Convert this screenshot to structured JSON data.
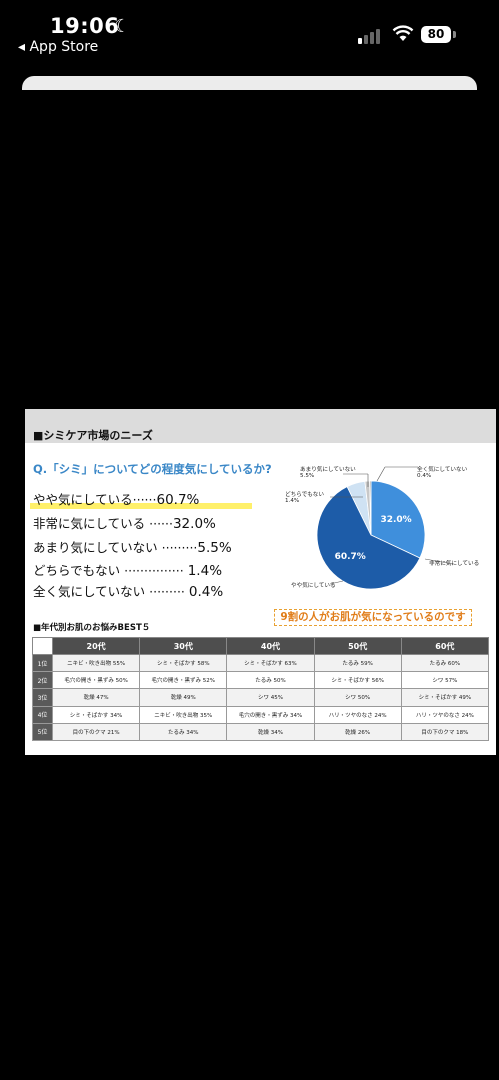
{
  "status_bar": {
    "time": "19:06",
    "back_label": "◂ App Store",
    "battery": "80"
  },
  "slide": {
    "section_title": "■シミケア市場のニーズ",
    "question": "Q.「シミ」についてどの程度気にしているか?",
    "answers": [
      {
        "label": "やや気にしている",
        "dots": "······",
        "pct": "60.7%"
      },
      {
        "label": "非常に気にしている",
        "dots": "······",
        "pct": "32.0%"
      },
      {
        "label": "あまり気にしていない",
        "dots": "·········",
        "pct": "5.5%"
      },
      {
        "label": "どちらでもない",
        "dots": "···············",
        "pct": "1.4%"
      },
      {
        "label": "全く気にしていない",
        "dots": "·········",
        "pct": "0.4%"
      }
    ],
    "callout": "9割の人がお肌が気になっているのです",
    "table_title": "■年代別お肌のお悩みBEST５",
    "table": {
      "headers": [
        "20代",
        "30代",
        "40代",
        "50代",
        "60代"
      ],
      "ranks": [
        "1位",
        "2位",
        "3位",
        "4位",
        "5位"
      ],
      "rows": [
        [
          "ニキビ・吹き出物 55%",
          "シミ・そばかす 58%",
          "シミ・そばかす 63%",
          "たるみ 59%",
          "たるみ 60%"
        ],
        [
          "毛穴の開き・黒ずみ 50%",
          "毛穴の開き・黒ずみ 52%",
          "たるみ 50%",
          "シミ・そばかす 56%",
          "シワ 57%"
        ],
        [
          "乾燥 47%",
          "乾燥 49%",
          "シワ 45%",
          "シワ 50%",
          "シミ・そばかす 49%"
        ],
        [
          "シミ・そばかす 34%",
          "ニキビ・吹き出物 35%",
          "毛穴の開き・黒ずみ 34%",
          "ハリ・ツヤのなさ 24%",
          "ハリ・ツヤのなさ 24%"
        ],
        [
          "目の下のクマ 21%",
          "たるみ 34%",
          "乾燥 34%",
          "乾燥 26%",
          "目の下のクマ 18%"
        ]
      ]
    }
  },
  "chart_data": {
    "type": "pie",
    "series": [
      {
        "name": "やや気にしている",
        "value": 60.7,
        "label": "60.7%",
        "color": "#1d5ca8"
      },
      {
        "name": "非常に気にしている",
        "value": 32.0,
        "label": "32.0%",
        "color": "#3f8fdc"
      },
      {
        "name": "あまり気にしていない",
        "value": 5.5,
        "label": "5.5%",
        "color": "#cfe2f3"
      },
      {
        "name": "どちらでもない",
        "value": 1.4,
        "label": "1.4%",
        "color": "#c8c8c8"
      },
      {
        "name": "全く気にしていない",
        "value": 0.4,
        "label": "0.4%",
        "color": "#9a9a9a"
      }
    ],
    "outer_labels": {
      "mostly_not": "あまり気にしていない",
      "mostly_not_pct": "5.5%",
      "neither": "どちらでもない",
      "neither_pct": "1.4%",
      "none": "全く気にしていない",
      "none_pct": "0.4%",
      "very": "非常に気にしている",
      "somewhat": "やや気にしている"
    }
  }
}
